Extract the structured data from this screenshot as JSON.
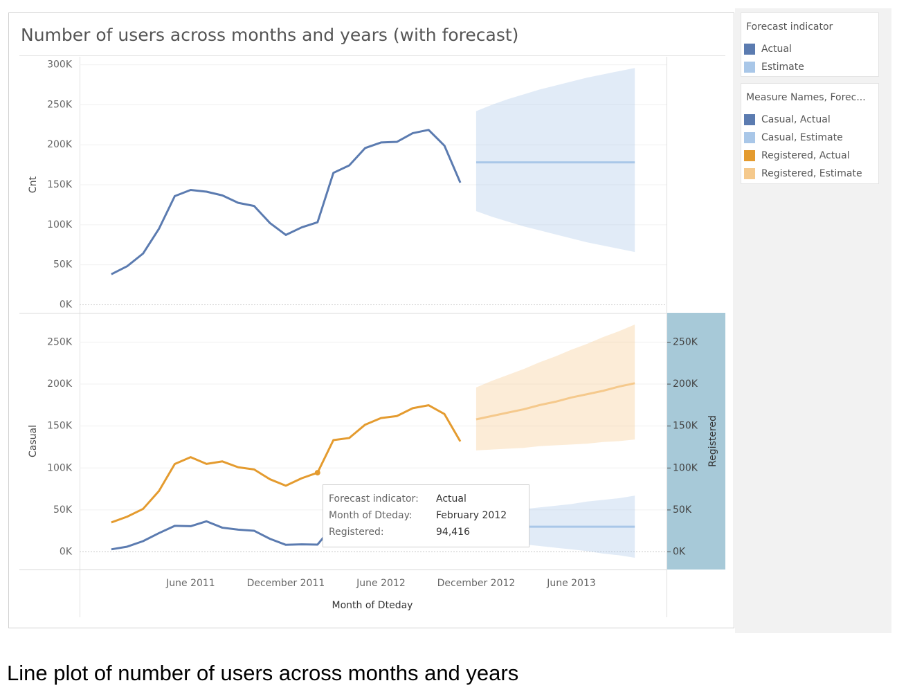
{
  "chart_data": [
    {
      "type": "line",
      "title": "Number of users across months and years (with forecast)",
      "ylabel": "Cnt",
      "legend_title": "Forecast indicator",
      "x": [
        "2011-01",
        "2011-02",
        "2011-03",
        "2011-04",
        "2011-05",
        "2011-06",
        "2011-07",
        "2011-08",
        "2011-09",
        "2011-10",
        "2011-11",
        "2011-12",
        "2012-01",
        "2012-02",
        "2012-03",
        "2012-04",
        "2012-05",
        "2012-06",
        "2012-07",
        "2012-08",
        "2012-09",
        "2012-10",
        "2012-11",
        "2012-12",
        "2013-01",
        "2013-02",
        "2013-03",
        "2013-04",
        "2013-05",
        "2013-06",
        "2013-07",
        "2013-08",
        "2013-09",
        "2013-10"
      ],
      "xlim": [
        "2010-11",
        "2013-12"
      ],
      "ylim": [
        -10000,
        310000
      ],
      "yticks": [
        {
          "value": 0,
          "label": "0K"
        },
        {
          "value": 50000,
          "label": "50K"
        },
        {
          "value": 100000,
          "label": "100K"
        },
        {
          "value": 150000,
          "label": "150K"
        },
        {
          "value": 200000,
          "label": "200K"
        },
        {
          "value": 250000,
          "label": "250K"
        },
        {
          "value": 300000,
          "label": "300K"
        }
      ],
      "grid": true,
      "series": [
        {
          "name": "Actual",
          "color": "#5b7bb0",
          "values": [
            38189,
            48215,
            64045,
            94870,
            135821,
            143512,
            141341,
            136691,
            127418,
            123511,
            102167,
            87323,
            96744,
            103137,
            164875,
            174224,
            195865,
            202830,
            203607,
            214503,
            218573,
            198841,
            152664,
            null,
            null,
            null,
            null,
            null,
            null,
            null,
            null,
            null,
            null,
            null
          ]
        },
        {
          "name": "Estimate",
          "color": "#a9c7e8",
          "values": [
            null,
            null,
            null,
            null,
            null,
            null,
            null,
            null,
            null,
            null,
            null,
            null,
            null,
            null,
            null,
            null,
            null,
            null,
            null,
            null,
            null,
            null,
            null,
            178000,
            178000,
            178000,
            178000,
            178000,
            178000,
            178000,
            178000,
            178000,
            178000,
            178000
          ],
          "lower": [
            null,
            null,
            null,
            null,
            null,
            null,
            null,
            null,
            null,
            null,
            null,
            null,
            null,
            null,
            null,
            null,
            null,
            null,
            null,
            null,
            null,
            null,
            null,
            117000,
            110000,
            104000,
            98000,
            93000,
            88000,
            83000,
            78000,
            74000,
            70000,
            66000
          ],
          "upper": [
            null,
            null,
            null,
            null,
            null,
            null,
            null,
            null,
            null,
            null,
            null,
            null,
            null,
            null,
            null,
            null,
            null,
            null,
            null,
            null,
            null,
            null,
            null,
            242000,
            250000,
            257000,
            263000,
            269000,
            274000,
            279000,
            284000,
            288000,
            292000,
            296000
          ]
        }
      ]
    },
    {
      "type": "line",
      "ylabel": "Casual",
      "y2label": "Registered",
      "xlabel": "Month of Dteday",
      "legend_title": "Measure Names, Forec...",
      "x": [
        "2011-01",
        "2011-02",
        "2011-03",
        "2011-04",
        "2011-05",
        "2011-06",
        "2011-07",
        "2011-08",
        "2011-09",
        "2011-10",
        "2011-11",
        "2011-12",
        "2012-01",
        "2012-02",
        "2012-03",
        "2012-04",
        "2012-05",
        "2012-06",
        "2012-07",
        "2012-08",
        "2012-09",
        "2012-10",
        "2012-11",
        "2012-12",
        "2013-01",
        "2013-02",
        "2013-03",
        "2013-04",
        "2013-05",
        "2013-06",
        "2013-07",
        "2013-08",
        "2013-09",
        "2013-10"
      ],
      "xlim": [
        "2010-11",
        "2013-12"
      ],
      "xticks": [
        {
          "value": "2011-06",
          "label": "June 2011"
        },
        {
          "value": "2011-12",
          "label": "December 2011"
        },
        {
          "value": "2012-06",
          "label": "June 2012"
        },
        {
          "value": "2012-12",
          "label": "December 2012"
        },
        {
          "value": "2013-06",
          "label": "June 2013"
        }
      ],
      "ylim": [
        -21000,
        285000
      ],
      "yticks": [
        {
          "value": 0,
          "label": "0K"
        },
        {
          "value": 50000,
          "label": "50K"
        },
        {
          "value": 100000,
          "label": "100K"
        },
        {
          "value": 150000,
          "label": "150K"
        },
        {
          "value": 200000,
          "label": "200K"
        },
        {
          "value": 250000,
          "label": "250K"
        }
      ],
      "y2lim": [
        -21000,
        285000
      ],
      "y2ticks": [
        {
          "value": 0,
          "label": "0K"
        },
        {
          "value": 50000,
          "label": "50K"
        },
        {
          "value": 100000,
          "label": "100K"
        },
        {
          "value": 150000,
          "label": "150K"
        },
        {
          "value": 200000,
          "label": "200K"
        },
        {
          "value": 250000,
          "label": "250K"
        }
      ],
      "grid": true,
      "series": [
        {
          "name": "Casual, Actual",
          "color": "#5b7bb0",
          "values": [
            3073,
            6242,
            12826,
            22346,
            31050,
            30612,
            36452,
            28842,
            26545,
            25222,
            15594,
            8448,
            8969,
            8721,
            31618,
            38456,
            44235,
            43294,
            41705,
            43197,
            43778,
            34538,
            21009,
            null,
            null,
            null,
            null,
            null,
            null,
            null,
            null,
            null,
            null,
            null
          ]
        },
        {
          "name": "Casual, Estimate",
          "color": "#a9c7e8",
          "values": [
            null,
            null,
            null,
            null,
            null,
            null,
            null,
            null,
            null,
            null,
            null,
            null,
            null,
            null,
            null,
            null,
            null,
            null,
            null,
            null,
            null,
            null,
            null,
            30000,
            30000,
            30000,
            30000,
            30000,
            30000,
            30000,
            30000,
            30000,
            30000,
            30000
          ],
          "lower": [
            null,
            null,
            null,
            null,
            null,
            null,
            null,
            null,
            null,
            null,
            null,
            null,
            null,
            null,
            null,
            null,
            null,
            null,
            null,
            null,
            null,
            null,
            null,
            15000,
            13000,
            11000,
            9000,
            7000,
            5000,
            3000,
            1000,
            -2000,
            -4000,
            -7000
          ],
          "upper": [
            null,
            null,
            null,
            null,
            null,
            null,
            null,
            null,
            null,
            null,
            null,
            null,
            null,
            null,
            null,
            null,
            null,
            null,
            null,
            null,
            null,
            null,
            null,
            45000,
            47000,
            49000,
            51000,
            53000,
            55000,
            57000,
            60000,
            62000,
            64000,
            67000
          ]
        },
        {
          "name": "Registered, Actual",
          "color": "#e49b2f",
          "axis": "y2",
          "values": [
            35116,
            41973,
            51219,
            72524,
            104771,
            112900,
            104889,
            107849,
            100873,
            98289,
            86573,
            78875,
            87775,
            94416,
            133257,
            135768,
            151630,
            159536,
            161902,
            171306,
            174795,
            164303,
            131655,
            null,
            null,
            null,
            null,
            null,
            null,
            null,
            null,
            null,
            null,
            null
          ]
        },
        {
          "name": "Registered, Estimate",
          "color": "#f5c98c",
          "axis": "y2",
          "values": [
            null,
            null,
            null,
            null,
            null,
            null,
            null,
            null,
            null,
            null,
            null,
            null,
            null,
            null,
            null,
            null,
            null,
            null,
            null,
            null,
            null,
            null,
            null,
            158000,
            162000,
            166000,
            170000,
            175000,
            179000,
            184000,
            188000,
            192000,
            197000,
            201000
          ],
          "lower": [
            null,
            null,
            null,
            null,
            null,
            null,
            null,
            null,
            null,
            null,
            null,
            null,
            null,
            null,
            null,
            null,
            null,
            null,
            null,
            null,
            null,
            null,
            null,
            121000,
            122000,
            123000,
            124000,
            126000,
            127000,
            128000,
            129000,
            131000,
            132000,
            134000
          ],
          "upper": [
            null,
            null,
            null,
            null,
            null,
            null,
            null,
            null,
            null,
            null,
            null,
            null,
            null,
            null,
            null,
            null,
            null,
            null,
            null,
            null,
            null,
            null,
            null,
            196000,
            204000,
            211000,
            218000,
            226000,
            233000,
            241000,
            248000,
            256000,
            263000,
            271000
          ]
        }
      ]
    }
  ],
  "tooltip": {
    "rows": [
      {
        "label": "Forecast indicator:",
        "value": "Actual"
      },
      {
        "label": "Month of Dteday:",
        "value": "February 2012"
      },
      {
        "label": "Registered:",
        "value": "94,416"
      }
    ]
  },
  "caption": "Line plot of number of users across months and years"
}
